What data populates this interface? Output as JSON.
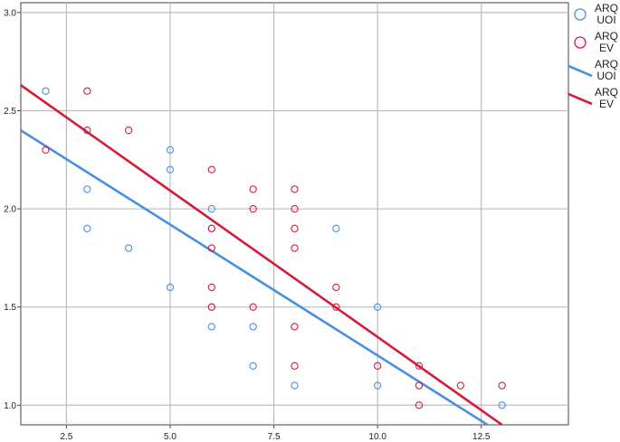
{
  "chart_data": {
    "type": "scatter",
    "title": "",
    "xlabel": "",
    "ylabel": "",
    "xlim": [
      1.4,
      14.6
    ],
    "ylim": [
      0.9,
      3.05
    ],
    "xticks": [
      2.5,
      5.0,
      7.5,
      10.0,
      12.5
    ],
    "yticks": [
      1.0,
      1.5,
      2.0,
      2.5,
      3.0
    ],
    "xtick_labels": [
      "2.5",
      "5.0",
      "7.5",
      "10.0",
      "12.5"
    ],
    "ytick_labels": [
      "1.0",
      "1.5",
      "2.0",
      "2.5",
      "3.0"
    ],
    "grid": true,
    "legend_position": "top-right",
    "series": [
      {
        "name": "ARQ UOI",
        "kind": "points",
        "color": "#4a90e2",
        "points": [
          [
            2,
            2.6
          ],
          [
            3,
            2.1
          ],
          [
            3,
            1.9
          ],
          [
            4,
            1.8
          ],
          [
            5,
            2.3
          ],
          [
            5,
            2.2
          ],
          [
            5,
            1.6
          ],
          [
            6,
            2.0
          ],
          [
            6,
            1.9
          ],
          [
            6,
            1.5
          ],
          [
            6,
            1.4
          ],
          [
            7,
            1.4
          ],
          [
            7,
            1.2
          ],
          [
            8,
            1.1
          ],
          [
            9,
            1.9
          ],
          [
            10,
            1.5
          ],
          [
            10,
            1.1
          ],
          [
            11,
            1.1
          ],
          [
            13,
            1.0
          ]
        ]
      },
      {
        "name": "ARQ EV",
        "kind": "points",
        "color": "#d41c3c",
        "points": [
          [
            2,
            2.3
          ],
          [
            3,
            2.6
          ],
          [
            3,
            2.4
          ],
          [
            4,
            2.4
          ],
          [
            6,
            2.2
          ],
          [
            6,
            1.9
          ],
          [
            6,
            1.8
          ],
          [
            6,
            1.6
          ],
          [
            6,
            1.5
          ],
          [
            7,
            2.1
          ],
          [
            7,
            2.0
          ],
          [
            7,
            1.5
          ],
          [
            8,
            2.1
          ],
          [
            8,
            2.0
          ],
          [
            8,
            1.9
          ],
          [
            8,
            1.8
          ],
          [
            8,
            1.4
          ],
          [
            8,
            1.2
          ],
          [
            9,
            1.6
          ],
          [
            9,
            1.5
          ],
          [
            10,
            1.2
          ],
          [
            11,
            1.2
          ],
          [
            11,
            1.1
          ],
          [
            11,
            1.0
          ],
          [
            12,
            1.1
          ],
          [
            13,
            1.1
          ]
        ]
      },
      {
        "name": "ARQ UOI",
        "kind": "fit-line",
        "color": "#4a90e2",
        "line": [
          [
            1.4,
            2.4
          ],
          [
            12.65,
            0.9
          ]
        ]
      },
      {
        "name": "ARQ EV",
        "kind": "fit-line",
        "color": "#d41c3c",
        "line": [
          [
            1.4,
            2.63
          ],
          [
            13.0,
            0.9
          ]
        ]
      }
    ]
  }
}
